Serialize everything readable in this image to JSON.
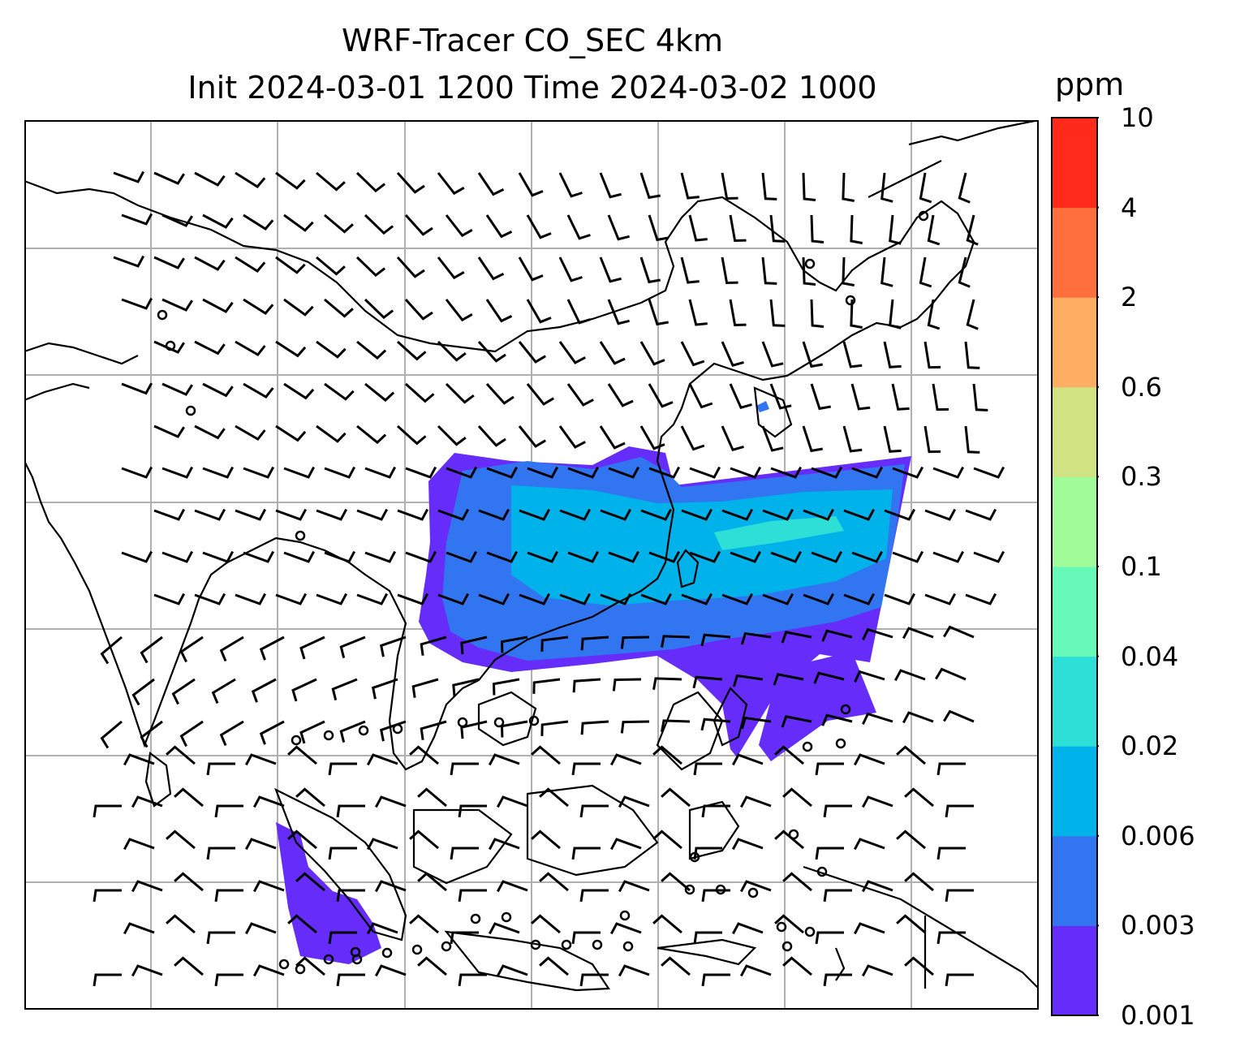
{
  "title": {
    "line1": "WRF-Tracer CO_SEC 4km",
    "line2": "Init 2024-03-01 1200 Time 2024-03-02 1000"
  },
  "colorbar": {
    "units": "ppm",
    "levels": [
      "0.001",
      "0.003",
      "0.006",
      "0.02",
      "0.04",
      "0.1",
      "0.3",
      "0.6",
      "2",
      "4",
      "10"
    ],
    "colors": [
      "#652cfa",
      "#3175f1",
      "#00b2ea",
      "#2ddfd6",
      "#66f9b8",
      "#9ffc98",
      "#cfe383",
      "#fdae63",
      "#ff6f3b",
      "#ff2a19"
    ]
  },
  "map": {
    "gridlines": true,
    "coastline_color": "#000000",
    "grid_color": "#b0b0b0",
    "plume_colors": [
      "#652cfa",
      "#3175f1",
      "#00b2ea",
      "#2ddfd6"
    ],
    "wind_barb_icon": "wind-barb-icon",
    "calm_icon": "calm-circle-icon"
  }
}
